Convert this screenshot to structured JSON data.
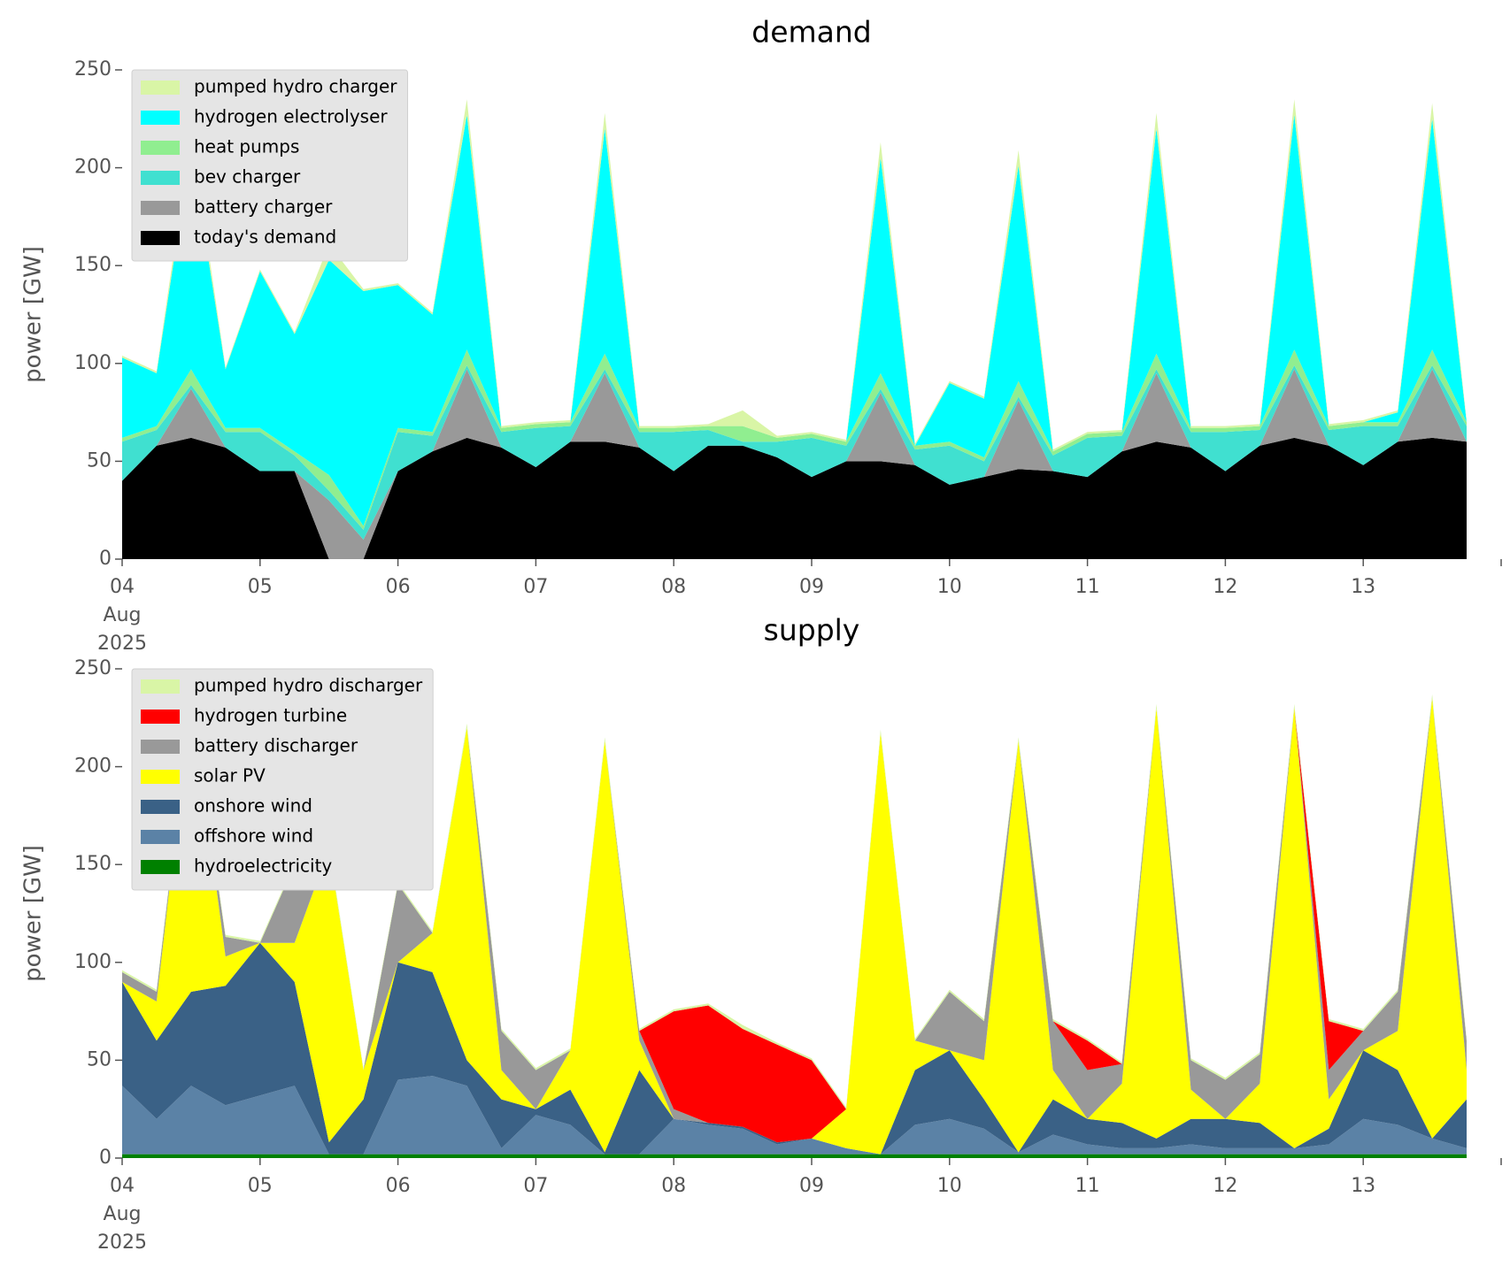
{
  "chart_data": [
    {
      "type": "stackedarea",
      "title": "demand",
      "ylabel": "power [GW]",
      "x": [
        "2025-08-04T00:00",
        "2025-08-04T06:00",
        "2025-08-04T12:00",
        "2025-08-04T18:00",
        "2025-08-05T00:00",
        "2025-08-05T06:00",
        "2025-08-05T12:00",
        "2025-08-05T18:00",
        "2025-08-06T00:00",
        "2025-08-06T06:00",
        "2025-08-06T12:00",
        "2025-08-06T18:00",
        "2025-08-07T00:00",
        "2025-08-07T06:00",
        "2025-08-07T12:00",
        "2025-08-07T18:00",
        "2025-08-08T00:00",
        "2025-08-08T06:00",
        "2025-08-08T12:00",
        "2025-08-08T18:00",
        "2025-08-09T00:00",
        "2025-08-09T06:00",
        "2025-08-09T12:00",
        "2025-08-09T18:00",
        "2025-08-10T00:00",
        "2025-08-10T06:00",
        "2025-08-10T12:00",
        "2025-08-10T18:00",
        "2025-08-11T00:00",
        "2025-08-11T06:00",
        "2025-08-11T12:00",
        "2025-08-11T18:00",
        "2025-08-12T00:00",
        "2025-08-12T06:00",
        "2025-08-12T12:00",
        "2025-08-12T18:00",
        "2025-08-13T00:00",
        "2025-08-13T06:00",
        "2025-08-13T12:00",
        "2025-08-13T18:00"
      ],
      "xlim": [
        "2025-08-04T00:00",
        "2025-08-14T00:00"
      ],
      "xticks": [
        {
          "value": "2025-08-04T00:00",
          "label": "04",
          "sublabels": [
            "Aug",
            "2025"
          ]
        },
        {
          "value": "2025-08-05T00:00",
          "label": "05"
        },
        {
          "value": "2025-08-06T00:00",
          "label": "06"
        },
        {
          "value": "2025-08-07T00:00",
          "label": "07"
        },
        {
          "value": "2025-08-08T00:00",
          "label": "08"
        },
        {
          "value": "2025-08-09T00:00",
          "label": "09"
        },
        {
          "value": "2025-08-10T00:00",
          "label": "10"
        },
        {
          "value": "2025-08-11T00:00",
          "label": "11"
        },
        {
          "value": "2025-08-12T00:00",
          "label": "12"
        },
        {
          "value": "2025-08-13T00:00",
          "label": "13"
        }
      ],
      "ylim": [
        0,
        250
      ],
      "yticks": [
        0,
        50,
        100,
        150,
        200,
        250
      ],
      "legend": "upper left",
      "series": [
        {
          "name": "today's demand",
          "color": "#000000",
          "values": [
            40,
            58,
            62,
            57,
            45,
            45,
            0,
            0,
            45,
            55,
            62,
            57,
            47,
            60,
            60,
            57,
            45,
            58,
            58,
            52,
            42,
            50,
            50,
            48,
            38,
            42,
            46,
            45,
            42,
            55,
            60,
            57,
            45,
            58,
            62,
            58,
            48,
            60,
            62,
            60
          ]
        },
        {
          "name": "battery charger",
          "color": "#999999",
          "values": [
            0,
            0,
            25,
            0,
            0,
            0,
            30,
            10,
            0,
            0,
            35,
            0,
            0,
            0,
            35,
            0,
            0,
            0,
            0,
            0,
            0,
            0,
            35,
            0,
            0,
            0,
            35,
            0,
            0,
            0,
            35,
            0,
            0,
            0,
            35,
            0,
            0,
            0,
            35,
            0
          ]
        },
        {
          "name": "bev charger",
          "color": "#40e0d0",
          "values": [
            20,
            8,
            2,
            8,
            20,
            8,
            5,
            5,
            20,
            8,
            2,
            8,
            20,
            8,
            2,
            8,
            20,
            8,
            2,
            8,
            20,
            8,
            2,
            8,
            20,
            8,
            2,
            8,
            20,
            8,
            2,
            8,
            20,
            8,
            2,
            8,
            20,
            8,
            2,
            8
          ]
        },
        {
          "name": "heat pumps",
          "color": "#90ee90",
          "values": [
            2,
            2,
            8,
            2,
            2,
            2,
            8,
            2,
            2,
            2,
            8,
            2,
            2,
            2,
            8,
            2,
            2,
            2,
            8,
            2,
            2,
            2,
            8,
            2,
            2,
            2,
            8,
            2,
            2,
            2,
            8,
            2,
            2,
            2,
            8,
            2,
            2,
            2,
            8,
            2
          ]
        },
        {
          "name": "hydrogen electrolyser",
          "color": "#00ffff",
          "values": [
            41,
            27,
            113,
            30,
            80,
            60,
            110,
            120,
            73,
            60,
            120,
            0,
            0,
            0,
            115,
            0,
            0,
            0,
            0,
            0,
            0,
            0,
            110,
            0,
            30,
            30,
            110,
            0,
            0,
            0,
            115,
            0,
            0,
            0,
            120,
            0,
            0,
            5,
            118,
            0
          ]
        },
        {
          "name": "pumped hydro charger",
          "color": "#d9f5a6",
          "values": [
            1,
            1,
            8,
            1,
            1,
            1,
            8,
            1,
            1,
            1,
            8,
            1,
            1,
            1,
            8,
            1,
            1,
            1,
            8,
            1,
            1,
            1,
            8,
            1,
            1,
            1,
            8,
            1,
            1,
            1,
            8,
            1,
            1,
            1,
            8,
            1,
            1,
            1,
            8,
            1
          ]
        }
      ]
    },
    {
      "type": "stackedarea",
      "title": "supply",
      "ylabel": "power [GW]",
      "x": [
        "2025-08-04T00:00",
        "2025-08-04T06:00",
        "2025-08-04T12:00",
        "2025-08-04T18:00",
        "2025-08-05T00:00",
        "2025-08-05T06:00",
        "2025-08-05T12:00",
        "2025-08-05T18:00",
        "2025-08-06T00:00",
        "2025-08-06T06:00",
        "2025-08-06T12:00",
        "2025-08-06T18:00",
        "2025-08-07T00:00",
        "2025-08-07T06:00",
        "2025-08-07T12:00",
        "2025-08-07T18:00",
        "2025-08-08T00:00",
        "2025-08-08T06:00",
        "2025-08-08T12:00",
        "2025-08-08T18:00",
        "2025-08-09T00:00",
        "2025-08-09T06:00",
        "2025-08-09T12:00",
        "2025-08-09T18:00",
        "2025-08-10T00:00",
        "2025-08-10T06:00",
        "2025-08-10T12:00",
        "2025-08-10T18:00",
        "2025-08-11T00:00",
        "2025-08-11T06:00",
        "2025-08-11T12:00",
        "2025-08-11T18:00",
        "2025-08-12T00:00",
        "2025-08-12T06:00",
        "2025-08-12T12:00",
        "2025-08-12T18:00",
        "2025-08-13T00:00",
        "2025-08-13T06:00",
        "2025-08-13T12:00",
        "2025-08-13T18:00"
      ],
      "xlim": [
        "2025-08-04T00:00",
        "2025-08-14T00:00"
      ],
      "xticks": [
        {
          "value": "2025-08-04T00:00",
          "label": "04",
          "sublabels": [
            "Aug",
            "2025"
          ]
        },
        {
          "value": "2025-08-05T00:00",
          "label": "05"
        },
        {
          "value": "2025-08-06T00:00",
          "label": "06"
        },
        {
          "value": "2025-08-07T00:00",
          "label": "07"
        },
        {
          "value": "2025-08-08T00:00",
          "label": "08"
        },
        {
          "value": "2025-08-09T00:00",
          "label": "09"
        },
        {
          "value": "2025-08-10T00:00",
          "label": "10"
        },
        {
          "value": "2025-08-11T00:00",
          "label": "11"
        },
        {
          "value": "2025-08-12T00:00",
          "label": "12"
        },
        {
          "value": "2025-08-13T00:00",
          "label": "13"
        }
      ],
      "ylim": [
        0,
        250
      ],
      "yticks": [
        0,
        50,
        100,
        150,
        200,
        250
      ],
      "legend": "upper left",
      "series": [
        {
          "name": "hydroelectricity",
          "color": "#008000",
          "values": [
            2,
            2,
            2,
            2,
            2,
            2,
            2,
            2,
            2,
            2,
            2,
            2,
            2,
            2,
            2,
            2,
            2,
            2,
            2,
            2,
            2,
            2,
            2,
            2,
            2,
            2,
            2,
            2,
            2,
            2,
            2,
            2,
            2,
            2,
            2,
            2,
            2,
            2,
            2,
            2
          ]
        },
        {
          "name": "offshore wind",
          "color": "#5b82a6",
          "values": [
            35,
            18,
            35,
            25,
            30,
            35,
            0,
            0,
            38,
            40,
            35,
            3,
            20,
            15,
            0,
            0,
            18,
            15,
            13,
            5,
            8,
            3,
            0,
            15,
            18,
            13,
            1,
            10,
            5,
            3,
            3,
            5,
            3,
            3,
            3,
            5,
            18,
            15,
            8,
            3
          ]
        },
        {
          "name": "onshore wind",
          "color": "#3a6186",
          "values": [
            53,
            40,
            48,
            61,
            78,
            53,
            6,
            28,
            60,
            53,
            13,
            25,
            3,
            18,
            1,
            43,
            0,
            1,
            1,
            1,
            0,
            0,
            0,
            28,
            35,
            15,
            0,
            18,
            13,
            13,
            5,
            13,
            15,
            13,
            0,
            8,
            35,
            28,
            0,
            25
          ]
        },
        {
          "name": "solar PV",
          "color": "#ffff00",
          "values": [
            0,
            20,
            150,
            15,
            0,
            20,
            150,
            15,
            0,
            20,
            170,
            15,
            0,
            20,
            210,
            15,
            0,
            0,
            0,
            0,
            0,
            20,
            215,
            15,
            0,
            20,
            210,
            15,
            0,
            20,
            220,
            15,
            0,
            20,
            225,
            15,
            0,
            20,
            225,
            15
          ]
        },
        {
          "name": "battery discharger",
          "color": "#999999",
          "values": [
            5,
            5,
            0,
            10,
            0,
            40,
            0,
            0,
            40,
            0,
            0,
            20,
            20,
            0,
            0,
            5,
            5,
            0,
            0,
            0,
            0,
            0,
            0,
            0,
            30,
            20,
            0,
            25,
            25,
            10,
            0,
            15,
            20,
            15,
            0,
            15,
            10,
            20,
            0,
            15
          ]
        },
        {
          "name": "hydrogen turbine",
          "color": "#ff0000",
          "values": [
            0,
            0,
            0,
            0,
            0,
            0,
            0,
            0,
            0,
            0,
            0,
            0,
            0,
            0,
            0,
            0,
            50,
            60,
            50,
            50,
            40,
            0,
            0,
            0,
            0,
            0,
            0,
            0,
            15,
            0,
            0,
            0,
            0,
            0,
            0,
            25,
            0,
            0,
            0,
            0
          ]
        },
        {
          "name": "pumped hydro discharger",
          "color": "#d9f5a6",
          "values": [
            1,
            1,
            2,
            1,
            1,
            1,
            2,
            1,
            1,
            1,
            2,
            1,
            1,
            1,
            2,
            1,
            1,
            1,
            2,
            1,
            1,
            1,
            2,
            1,
            1,
            1,
            2,
            1,
            1,
            1,
            2,
            1,
            1,
            1,
            2,
            1,
            1,
            1,
            2,
            1
          ]
        }
      ]
    }
  ]
}
